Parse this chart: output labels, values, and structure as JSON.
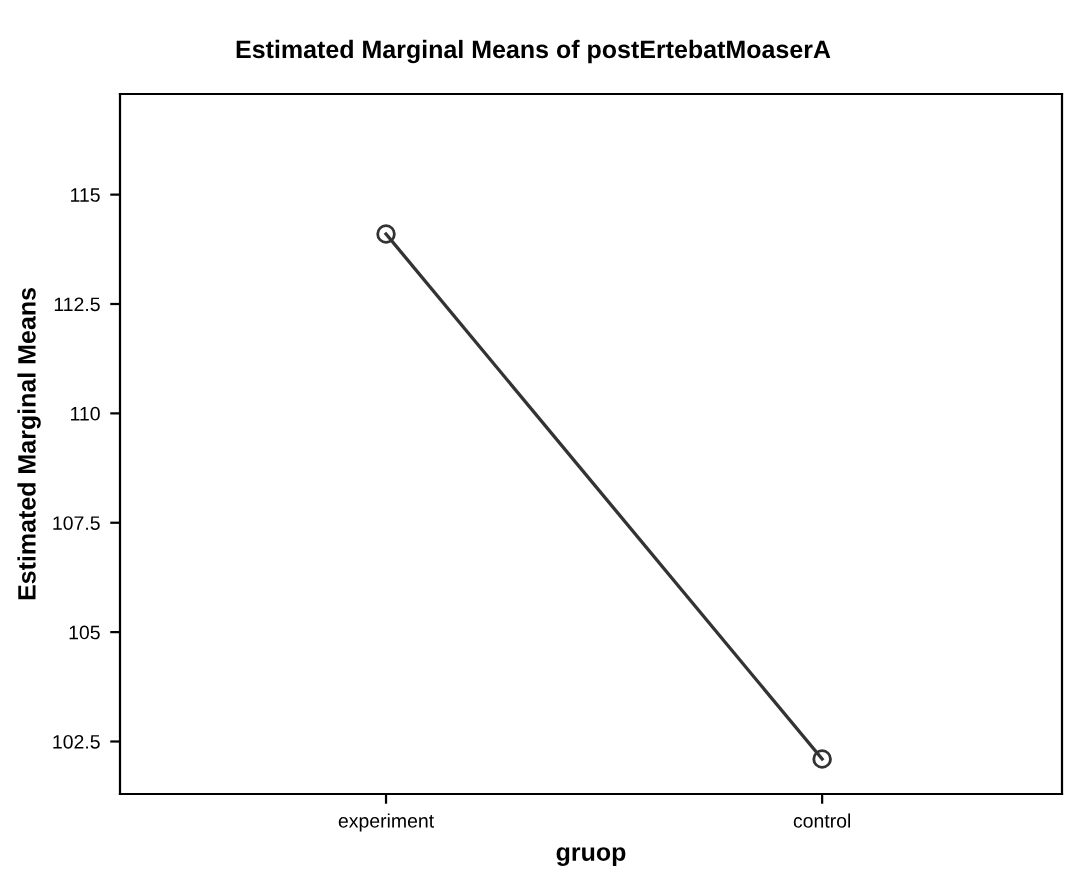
{
  "chart_data": {
    "type": "line",
    "title": "Estimated Marginal Means of postErtebatMoaserA",
    "xlabel": "gruop",
    "ylabel": "Estimated Marginal Means",
    "categories": [
      "experiment",
      "control"
    ],
    "series": [
      {
        "color": "#333333",
        "values": [
          114.1,
          102.1
        ]
      }
    ],
    "ylim": [
      101.3,
      117.3
    ],
    "yticks": [
      102.5,
      105,
      107.5,
      110,
      112.5,
      115
    ],
    "marker": "circle",
    "line_style": "solid",
    "grid": false
  }
}
